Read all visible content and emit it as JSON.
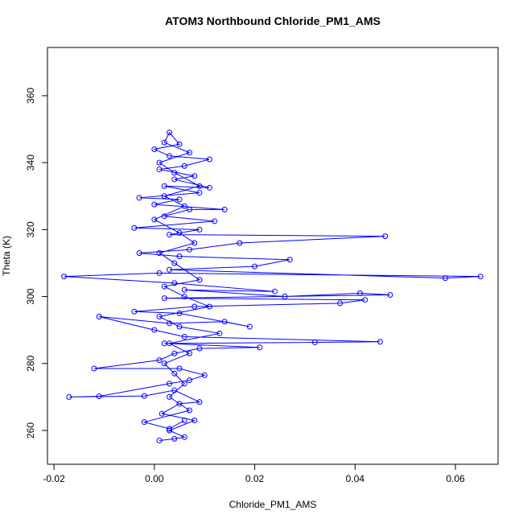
{
  "chart_data": {
    "type": "line",
    "markers": true,
    "title": "ATOM3 Northbound Chloride_PM1_AMS",
    "x_label": "Chloride_PM1_AMS",
    "y_label": "Theta (K)",
    "xlim": [
      -0.0213,
      0.0685
    ],
    "ylim": [
      249.9,
      374.4
    ],
    "xticks": [
      -0.02,
      {
        "value": 0,
        "label": "0.00"
      },
      0.02,
      0.04,
      0.06
    ],
    "yticks": [
      260,
      280,
      300,
      320,
      340,
      360
    ],
    "series": [
      {
        "color": "#0000ff",
        "x": [
          0.001,
          0.004,
          0.006,
          0.003,
          0.008,
          0.0015,
          0.005,
          0.009,
          0.004,
          -0.002,
          -0.017,
          -0.011,
          0.003,
          0.007,
          0.01,
          0.005,
          -0.012,
          0.001,
          0.004,
          0.009,
          0.021,
          0.002,
          0.032,
          0.045,
          0.006,
          0.0,
          -0.011,
          0.003,
          0.014,
          0.019,
          0.005,
          -0.004,
          0.008,
          0.037,
          0.042,
          0.002,
          0.047,
          0.041,
          0.026,
          0.006,
          0.024,
          0.004,
          -0.018,
          0.001,
          0.065,
          0.058,
          0.003,
          0.02,
          0.027,
          0.005,
          -0.003,
          0.007,
          0.017,
          0.046,
          0.003,
          0.009,
          -0.004,
          0.012,
          0.002,
          0.007,
          0.014,
          0.0,
          0.005,
          -0.003,
          0.009,
          0.002,
          0.011,
          0.004,
          0.008,
          0.001,
          0.006,
          0.011,
          0.003,
          0.0,
          0.005,
          0.003,
          0.002,
          0.007,
          0.001,
          0.004,
          0.009,
          0.002,
          0.006,
          0.0,
          0.005,
          0.008,
          0.001,
          0.004,
          0.009,
          0.002,
          0.006,
          0.011,
          0.001,
          0.005,
          0.013,
          0.003,
          0.007,
          0.002,
          0.004,
          0.006,
          0.003,
          0.007,
          -0.002,
          0.003,
          0.006
        ],
        "values": [
          257,
          257.5,
          258,
          260,
          263,
          265,
          268,
          268.5,
          272,
          270.3,
          270,
          270.2,
          274,
          275,
          276.5,
          278.5,
          278.5,
          281,
          283,
          284.5,
          284.8,
          286,
          286.3,
          286.5,
          288,
          290,
          294,
          292,
          292.5,
          291,
          295,
          295.5,
          297,
          298,
          299,
          299.5,
          300.5,
          301,
          300,
          302,
          301.5,
          304,
          306,
          307,
          306,
          305.5,
          308,
          309,
          311,
          312,
          313,
          314,
          316,
          318,
          318.5,
          320,
          320.5,
          322.5,
          324,
          326,
          326,
          327.5,
          329,
          329.5,
          331,
          333,
          332.5,
          335,
          336,
          338,
          339,
          341,
          342,
          344,
          345.5,
          349,
          346,
          343,
          340,
          337,
          333,
          330,
          327,
          323,
          319,
          316,
          313,
          310,
          305,
          303,
          300,
          297,
          294,
          291,
          289,
          286,
          283,
          280,
          277,
          274,
          270,
          266,
          262.5,
          260.5,
          263
        ]
      }
    ]
  }
}
